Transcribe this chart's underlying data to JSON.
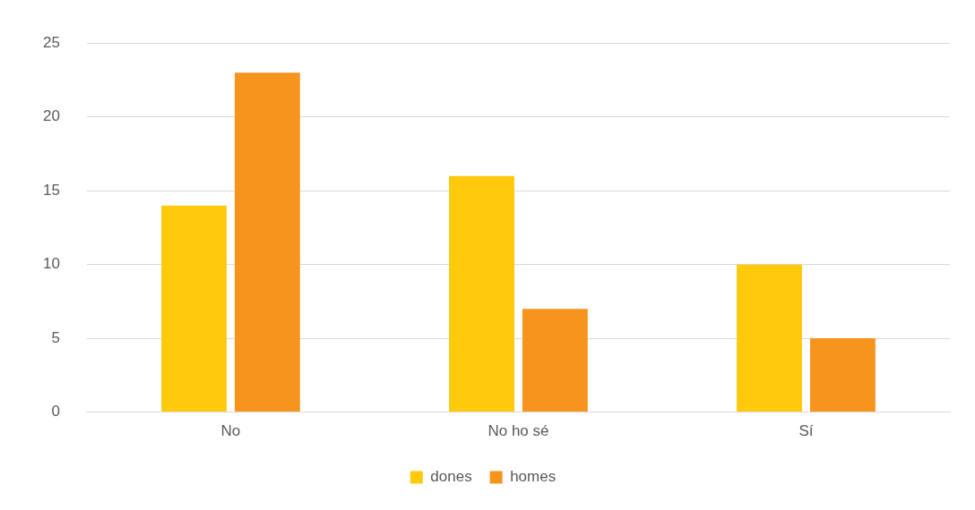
{
  "chart_data": {
    "type": "bar",
    "categories": [
      "No",
      "No ho sé",
      "Sí"
    ],
    "series": [
      {
        "name": "dones",
        "color": "#ffc90c",
        "values": [
          14,
          16,
          10
        ]
      },
      {
        "name": "homes",
        "color": "#f7941d",
        "values": [
          23,
          7,
          5
        ]
      }
    ],
    "ylim": [
      0,
      25
    ],
    "yticks": [
      0,
      5,
      10,
      15,
      20,
      25
    ],
    "grid": "y",
    "legend": "bottom"
  }
}
